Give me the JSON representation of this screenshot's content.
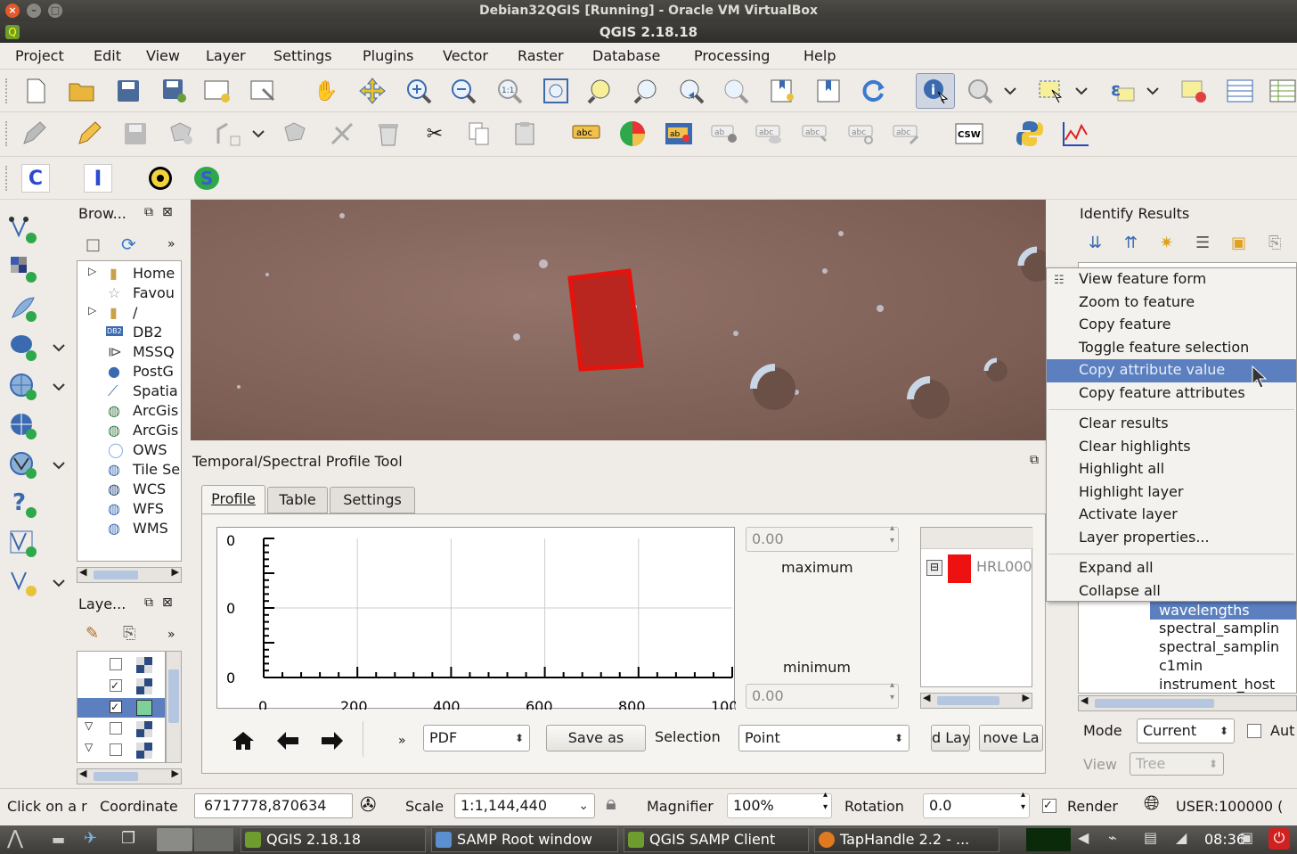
{
  "vbox_title": "Debian32QGIS [Running] - Oracle VM VirtualBox",
  "app_title": "QGIS 2.18.18",
  "menu": [
    "Project",
    "Edit",
    "View",
    "Layer",
    "Settings",
    "Plugins",
    "Vector",
    "Raster",
    "Database",
    "Processing",
    "Help"
  ],
  "plugin_toolbar": {
    "c": "C",
    "i": "I",
    "s": "S"
  },
  "browser": {
    "title": "Brow...",
    "items": [
      "Home",
      "Favou",
      "/",
      "DB2",
      "MSSQ",
      "PostG",
      "Spatia",
      "ArcGis",
      "ArcGis",
      "OWS",
      "Tile Se",
      "WCS",
      "WFS",
      "WMS"
    ],
    "db2_badge": "DB2"
  },
  "layers": {
    "title": "Laye..."
  },
  "profile": {
    "title": "Temporal/Spectral Profile Tool",
    "tabs": [
      "Profile",
      "Table",
      "Settings"
    ],
    "y_ticks": [
      "0",
      "0",
      "0"
    ],
    "x_ticks": [
      "0",
      "200",
      "400",
      "600",
      "800",
      "100"
    ],
    "max_value": "0.00",
    "max_label": "maximum",
    "min_label": "minimum",
    "min_value": "0.00",
    "layer_name": "HRL000",
    "format": "PDF",
    "save_label": "Save as",
    "selection_label": "Selection",
    "selection_value": "Point",
    "add_layer": "d Lay",
    "remove_layer": "nove La"
  },
  "identify": {
    "title": "Identify Results",
    "rows": [
      "wavelengths",
      "spectral_samplin",
      "spectral_samplin",
      "c1min",
      "instrument_host"
    ],
    "mode_label": "Mode",
    "mode_value": "Current",
    "auto_label": "Aut",
    "view_label": "View",
    "view_value": "Tree"
  },
  "context_menu": {
    "groups": [
      [
        "View feature form",
        "Zoom to feature",
        "Copy feature",
        "Toggle feature selection",
        "Copy attribute value",
        "Copy feature attributes"
      ],
      [
        "Clear results",
        "Clear highlights",
        "Highlight all",
        "Highlight layer",
        "Activate layer",
        "Layer properties..."
      ],
      [
        "Expand all",
        "Collapse all"
      ]
    ],
    "highlighted": "Copy attribute value"
  },
  "status": {
    "click_text": "Click on a r",
    "coord_label": "Coordinate",
    "coord_value": "6717778,870634",
    "scale_label": "Scale",
    "scale_value": "1:1,144,440",
    "magnifier_label": "Magnifier",
    "magnifier_value": "100%",
    "rotation_label": "Rotation",
    "rotation_value": "0.0",
    "render_label": "Render",
    "crs": "USER:100000 ("
  },
  "taskbar": {
    "tasks": [
      "QGIS 2.18.18",
      "SAMP Root window",
      "QGIS SAMP Client",
      "TapHandle 2.2 - ..."
    ],
    "clock": "08:36"
  },
  "colors": {
    "map": "#8a6a5e",
    "polygon": "#c0201a",
    "highlight": "#5b7fbf"
  }
}
